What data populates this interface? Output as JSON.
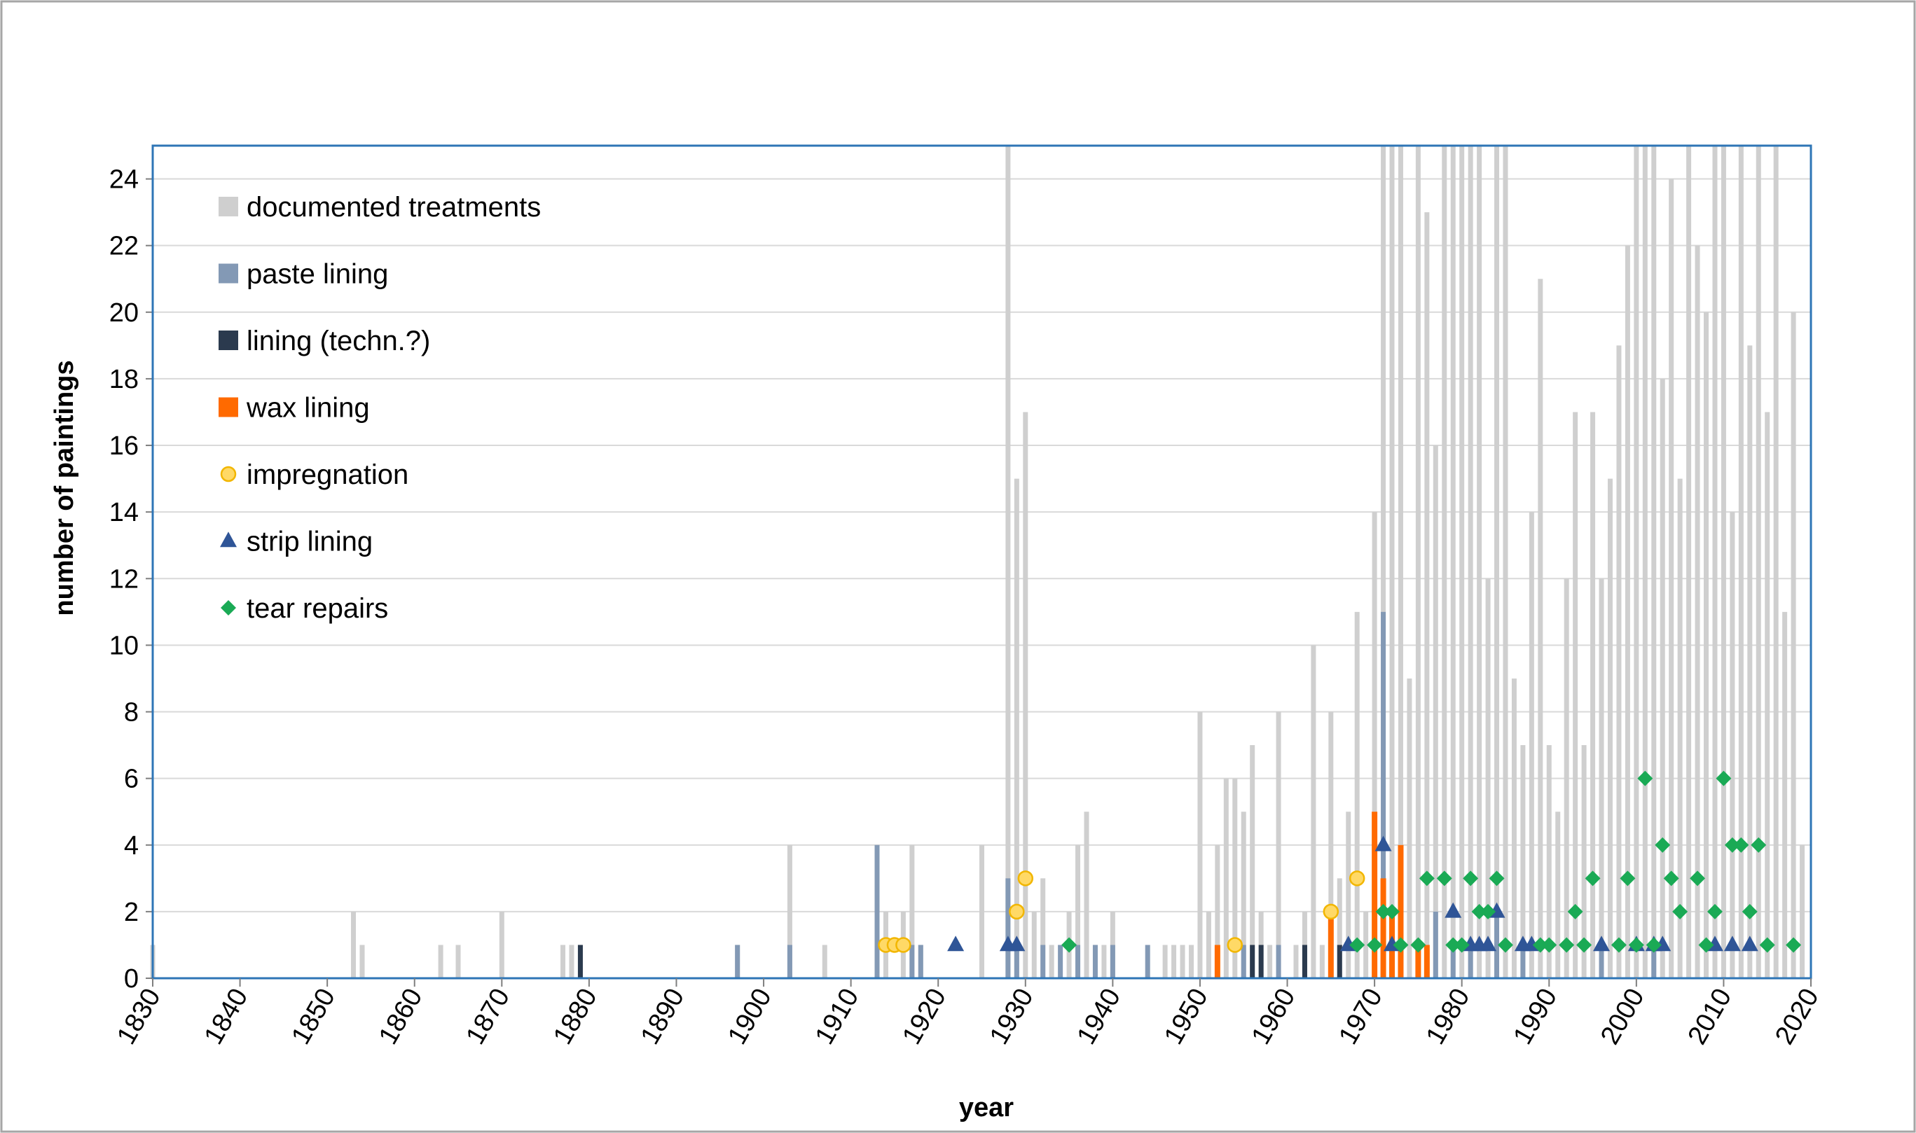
{
  "chart_data": {
    "type": "bar",
    "xlabel": "year",
    "ylabel": "number of paintings",
    "xlim": [
      1830,
      2020
    ],
    "ylim": [
      0,
      25
    ],
    "x_ticks": [
      1830,
      1840,
      1850,
      1860,
      1870,
      1880,
      1890,
      1900,
      1910,
      1920,
      1930,
      1940,
      1950,
      1960,
      1970,
      1980,
      1990,
      2000,
      2010,
      2020
    ],
    "y_ticks": [
      0,
      2,
      4,
      6,
      8,
      10,
      12,
      14,
      16,
      18,
      20,
      22,
      24
    ],
    "grid": "horizontal",
    "legend_position": "top-left",
    "colors": {
      "documented": "#cfcfcf",
      "paste": "#8399b5",
      "lining_techn": "#2b3a4e",
      "wax": "#ff6a00",
      "impregnation_fill": "#ffd966",
      "impregnation_edge": "#f2b600",
      "strip": "#2f5597",
      "tear": "#1aaa55",
      "frame": "#2e75b6",
      "grid": "#d9d9d9"
    },
    "series": [
      {
        "key": "documented",
        "name": "documented treatments",
        "marker": "bar",
        "points": [
          [
            1830,
            1
          ],
          [
            1853,
            2
          ],
          [
            1854,
            1
          ],
          [
            1863,
            1
          ],
          [
            1865,
            1
          ],
          [
            1870,
            2
          ],
          [
            1877,
            1
          ],
          [
            1878,
            1
          ],
          [
            1879,
            1
          ],
          [
            1897,
            1
          ],
          [
            1903,
            4
          ],
          [
            1907,
            1
          ],
          [
            1913,
            4
          ],
          [
            1914,
            2
          ],
          [
            1916,
            2
          ],
          [
            1917,
            4
          ],
          [
            1918,
            1
          ],
          [
            1925,
            4
          ],
          [
            1928,
            25
          ],
          [
            1929,
            15
          ],
          [
            1930,
            17
          ],
          [
            1931,
            2
          ],
          [
            1932,
            3
          ],
          [
            1933,
            1
          ],
          [
            1935,
            2
          ],
          [
            1936,
            4
          ],
          [
            1937,
            5
          ],
          [
            1938,
            1
          ],
          [
            1939,
            1
          ],
          [
            1940,
            2
          ],
          [
            1946,
            1
          ],
          [
            1947,
            1
          ],
          [
            1948,
            1
          ],
          [
            1949,
            1
          ],
          [
            1950,
            8
          ],
          [
            1951,
            2
          ],
          [
            1952,
            4
          ],
          [
            1953,
            6
          ],
          [
            1954,
            6
          ],
          [
            1955,
            5
          ],
          [
            1956,
            7
          ],
          [
            1957,
            2
          ],
          [
            1958,
            1
          ],
          [
            1959,
            8
          ],
          [
            1961,
            1
          ],
          [
            1962,
            2
          ],
          [
            1963,
            10
          ],
          [
            1964,
            1
          ],
          [
            1965,
            8
          ],
          [
            1966,
            3
          ],
          [
            1967,
            5
          ],
          [
            1968,
            11
          ],
          [
            1969,
            2
          ],
          [
            1970,
            14
          ],
          [
            1971,
            25
          ],
          [
            1972,
            25
          ],
          [
            1973,
            25
          ],
          [
            1974,
            9
          ],
          [
            1975,
            25
          ],
          [
            1976,
            23
          ],
          [
            1977,
            16
          ],
          [
            1978,
            25
          ],
          [
            1979,
            25
          ],
          [
            1980,
            25
          ],
          [
            1981,
            25
          ],
          [
            1982,
            25
          ],
          [
            1983,
            12
          ],
          [
            1984,
            25
          ],
          [
            1985,
            25
          ],
          [
            1986,
            9
          ],
          [
            1987,
            7
          ],
          [
            1988,
            14
          ],
          [
            1989,
            21
          ],
          [
            1990,
            7
          ],
          [
            1991,
            5
          ],
          [
            1992,
            12
          ],
          [
            1993,
            17
          ],
          [
            1994,
            7
          ],
          [
            1995,
            17
          ],
          [
            1996,
            12
          ],
          [
            1997,
            15
          ],
          [
            1998,
            19
          ],
          [
            1999,
            22
          ],
          [
            2000,
            25
          ],
          [
            2001,
            25
          ],
          [
            2002,
            25
          ],
          [
            2003,
            18
          ],
          [
            2004,
            24
          ],
          [
            2005,
            15
          ],
          [
            2006,
            25
          ],
          [
            2007,
            22
          ],
          [
            2008,
            20
          ],
          [
            2009,
            25
          ],
          [
            2010,
            25
          ],
          [
            2011,
            14
          ],
          [
            2012,
            25
          ],
          [
            2013,
            19
          ],
          [
            2014,
            25
          ],
          [
            2015,
            17
          ],
          [
            2016,
            25
          ],
          [
            2017,
            11
          ],
          [
            2018,
            20
          ],
          [
            2019,
            4
          ]
        ]
      },
      {
        "key": "paste",
        "name": "paste lining",
        "marker": "bar",
        "points": [
          [
            1897,
            1
          ],
          [
            1903,
            1
          ],
          [
            1913,
            4
          ],
          [
            1917,
            1
          ],
          [
            1918,
            1
          ],
          [
            1928,
            3
          ],
          [
            1929,
            1
          ],
          [
            1932,
            1
          ],
          [
            1934,
            1
          ],
          [
            1936,
            1
          ],
          [
            1938,
            1
          ],
          [
            1940,
            1
          ],
          [
            1944,
            1
          ],
          [
            1955,
            1
          ],
          [
            1959,
            1
          ],
          [
            1962,
            1
          ],
          [
            1971,
            11
          ],
          [
            1977,
            2
          ],
          [
            1979,
            1
          ],
          [
            1981,
            1
          ],
          [
            1984,
            2
          ],
          [
            1987,
            1
          ],
          [
            1996,
            1
          ],
          [
            2002,
            1
          ]
        ]
      },
      {
        "key": "lining_techn",
        "name": "lining (techn.?)",
        "marker": "bar",
        "points": [
          [
            1879,
            1
          ],
          [
            1956,
            1
          ],
          [
            1957,
            1
          ],
          [
            1962,
            1
          ],
          [
            1966,
            1
          ],
          [
            1973,
            1
          ]
        ]
      },
      {
        "key": "wax",
        "name": "wax lining",
        "marker": "bar",
        "points": [
          [
            1952,
            1
          ],
          [
            1965,
            2
          ],
          [
            1970,
            5
          ],
          [
            1971,
            3
          ],
          [
            1972,
            2
          ],
          [
            1973,
            4
          ],
          [
            1975,
            1
          ],
          [
            1976,
            1
          ]
        ]
      },
      {
        "key": "impregnation",
        "name": "impregnation",
        "marker": "circle",
        "points": [
          [
            1914,
            1
          ],
          [
            1915,
            1
          ],
          [
            1916,
            1
          ],
          [
            1929,
            2
          ],
          [
            1930,
            3
          ],
          [
            1954,
            1
          ],
          [
            1965,
            2
          ],
          [
            1968,
            3
          ]
        ]
      },
      {
        "key": "strip",
        "name": "strip lining",
        "marker": "triangle",
        "points": [
          [
            1922,
            1
          ],
          [
            1928,
            1
          ],
          [
            1929,
            1
          ],
          [
            1967,
            1
          ],
          [
            1971,
            4
          ],
          [
            1972,
            1
          ],
          [
            1979,
            2
          ],
          [
            1981,
            1
          ],
          [
            1982,
            1
          ],
          [
            1983,
            1
          ],
          [
            1984,
            2
          ],
          [
            1987,
            1
          ],
          [
            1988,
            1
          ],
          [
            1996,
            1
          ],
          [
            2000,
            1
          ],
          [
            2002,
            1
          ],
          [
            2003,
            1
          ],
          [
            2009,
            1
          ],
          [
            2011,
            1
          ],
          [
            2013,
            1
          ]
        ]
      },
      {
        "key": "tear",
        "name": "tear repairs",
        "marker": "diamond",
        "points": [
          [
            1935,
            1
          ],
          [
            1968,
            1
          ],
          [
            1970,
            1
          ],
          [
            1971,
            2
          ],
          [
            1972,
            2
          ],
          [
            1973,
            1
          ],
          [
            1975,
            1
          ],
          [
            1976,
            3
          ],
          [
            1978,
            3
          ],
          [
            1979,
            1
          ],
          [
            1980,
            1
          ],
          [
            1981,
            3
          ],
          [
            1982,
            2
          ],
          [
            1983,
            2
          ],
          [
            1984,
            3
          ],
          [
            1985,
            1
          ],
          [
            1989,
            1
          ],
          [
            1990,
            1
          ],
          [
            1992,
            1
          ],
          [
            1993,
            2
          ],
          [
            1994,
            1
          ],
          [
            1995,
            3
          ],
          [
            1998,
            1
          ],
          [
            1999,
            3
          ],
          [
            2000,
            1
          ],
          [
            2001,
            6
          ],
          [
            2002,
            1
          ],
          [
            2003,
            4
          ],
          [
            2004,
            3
          ],
          [
            2005,
            2
          ],
          [
            2007,
            3
          ],
          [
            2008,
            1
          ],
          [
            2009,
            2
          ],
          [
            2010,
            6
          ],
          [
            2011,
            4
          ],
          [
            2012,
            4
          ],
          [
            2013,
            2
          ],
          [
            2014,
            4
          ],
          [
            2015,
            1
          ],
          [
            2018,
            1
          ]
        ]
      }
    ]
  }
}
